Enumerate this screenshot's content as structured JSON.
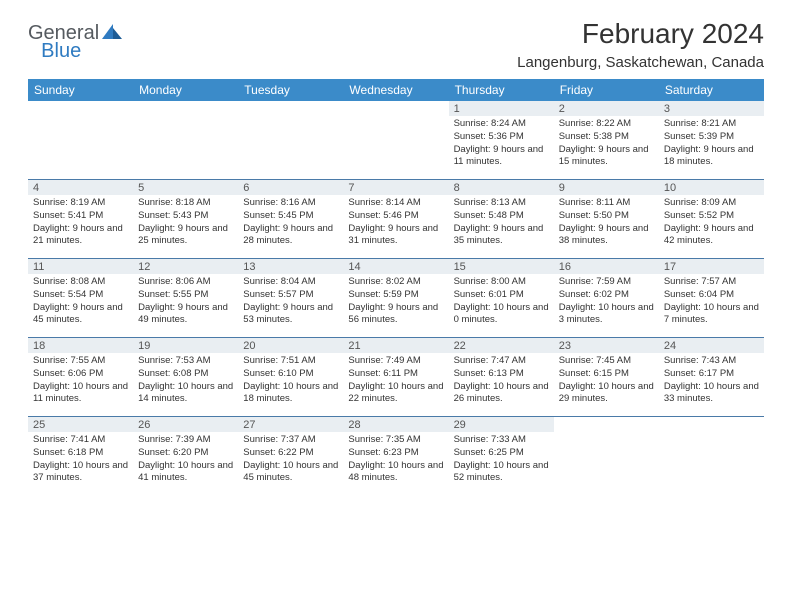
{
  "logo": {
    "text_general": "General",
    "text_blue": "Blue",
    "triangle_color": "#2f7bc1"
  },
  "header": {
    "month_title": "February 2024",
    "location": "Langenburg, Saskatchewan, Canada"
  },
  "colors": {
    "header_bg": "#3b8bc9",
    "daynum_bg": "#e9eef2",
    "row_border": "#4a7aa8"
  },
  "weekdays": [
    "Sunday",
    "Monday",
    "Tuesday",
    "Wednesday",
    "Thursday",
    "Friday",
    "Saturday"
  ],
  "weeks": [
    [
      null,
      null,
      null,
      null,
      {
        "n": "1",
        "sr": "8:24 AM",
        "ss": "5:36 PM",
        "dl": "9 hours and 11 minutes."
      },
      {
        "n": "2",
        "sr": "8:22 AM",
        "ss": "5:38 PM",
        "dl": "9 hours and 15 minutes."
      },
      {
        "n": "3",
        "sr": "8:21 AM",
        "ss": "5:39 PM",
        "dl": "9 hours and 18 minutes."
      }
    ],
    [
      {
        "n": "4",
        "sr": "8:19 AM",
        "ss": "5:41 PM",
        "dl": "9 hours and 21 minutes."
      },
      {
        "n": "5",
        "sr": "8:18 AM",
        "ss": "5:43 PM",
        "dl": "9 hours and 25 minutes."
      },
      {
        "n": "6",
        "sr": "8:16 AM",
        "ss": "5:45 PM",
        "dl": "9 hours and 28 minutes."
      },
      {
        "n": "7",
        "sr": "8:14 AM",
        "ss": "5:46 PM",
        "dl": "9 hours and 31 minutes."
      },
      {
        "n": "8",
        "sr": "8:13 AM",
        "ss": "5:48 PM",
        "dl": "9 hours and 35 minutes."
      },
      {
        "n": "9",
        "sr": "8:11 AM",
        "ss": "5:50 PM",
        "dl": "9 hours and 38 minutes."
      },
      {
        "n": "10",
        "sr": "8:09 AM",
        "ss": "5:52 PM",
        "dl": "9 hours and 42 minutes."
      }
    ],
    [
      {
        "n": "11",
        "sr": "8:08 AM",
        "ss": "5:54 PM",
        "dl": "9 hours and 45 minutes."
      },
      {
        "n": "12",
        "sr": "8:06 AM",
        "ss": "5:55 PM",
        "dl": "9 hours and 49 minutes."
      },
      {
        "n": "13",
        "sr": "8:04 AM",
        "ss": "5:57 PM",
        "dl": "9 hours and 53 minutes."
      },
      {
        "n": "14",
        "sr": "8:02 AM",
        "ss": "5:59 PM",
        "dl": "9 hours and 56 minutes."
      },
      {
        "n": "15",
        "sr": "8:00 AM",
        "ss": "6:01 PM",
        "dl": "10 hours and 0 minutes."
      },
      {
        "n": "16",
        "sr": "7:59 AM",
        "ss": "6:02 PM",
        "dl": "10 hours and 3 minutes."
      },
      {
        "n": "17",
        "sr": "7:57 AM",
        "ss": "6:04 PM",
        "dl": "10 hours and 7 minutes."
      }
    ],
    [
      {
        "n": "18",
        "sr": "7:55 AM",
        "ss": "6:06 PM",
        "dl": "10 hours and 11 minutes."
      },
      {
        "n": "19",
        "sr": "7:53 AM",
        "ss": "6:08 PM",
        "dl": "10 hours and 14 minutes."
      },
      {
        "n": "20",
        "sr": "7:51 AM",
        "ss": "6:10 PM",
        "dl": "10 hours and 18 minutes."
      },
      {
        "n": "21",
        "sr": "7:49 AM",
        "ss": "6:11 PM",
        "dl": "10 hours and 22 minutes."
      },
      {
        "n": "22",
        "sr": "7:47 AM",
        "ss": "6:13 PM",
        "dl": "10 hours and 26 minutes."
      },
      {
        "n": "23",
        "sr": "7:45 AM",
        "ss": "6:15 PM",
        "dl": "10 hours and 29 minutes."
      },
      {
        "n": "24",
        "sr": "7:43 AM",
        "ss": "6:17 PM",
        "dl": "10 hours and 33 minutes."
      }
    ],
    [
      {
        "n": "25",
        "sr": "7:41 AM",
        "ss": "6:18 PM",
        "dl": "10 hours and 37 minutes."
      },
      {
        "n": "26",
        "sr": "7:39 AM",
        "ss": "6:20 PM",
        "dl": "10 hours and 41 minutes."
      },
      {
        "n": "27",
        "sr": "7:37 AM",
        "ss": "6:22 PM",
        "dl": "10 hours and 45 minutes."
      },
      {
        "n": "28",
        "sr": "7:35 AM",
        "ss": "6:23 PM",
        "dl": "10 hours and 48 minutes."
      },
      {
        "n": "29",
        "sr": "7:33 AM",
        "ss": "6:25 PM",
        "dl": "10 hours and 52 minutes."
      },
      null,
      null
    ]
  ],
  "labels": {
    "sunrise": "Sunrise:",
    "sunset": "Sunset:",
    "daylight": "Daylight:"
  }
}
